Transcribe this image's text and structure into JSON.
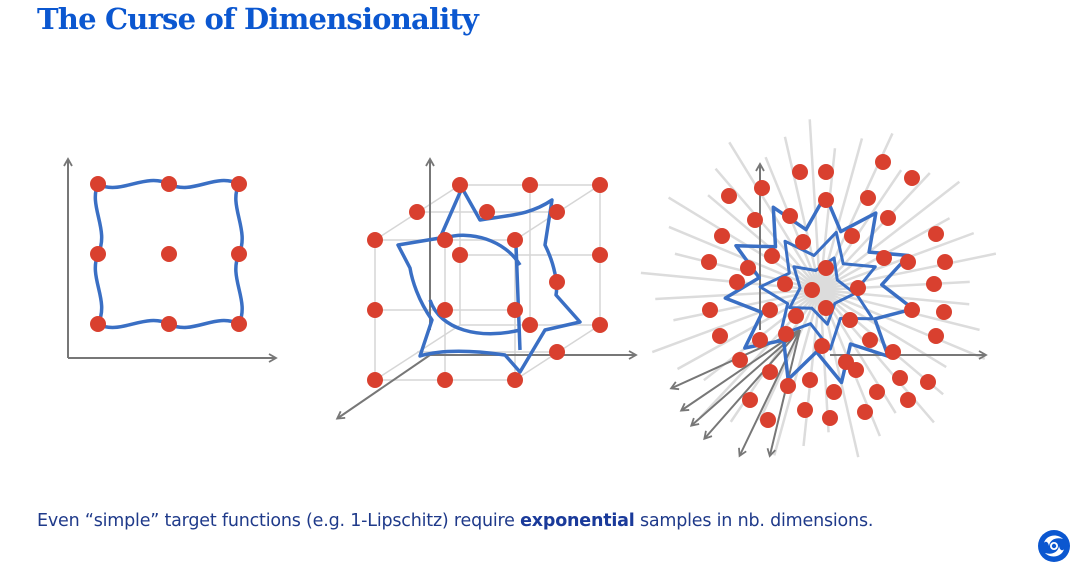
{
  "title": "The Curse of Dimensionality",
  "caption": {
    "before": "Even “simple” target functions (e.g. 1-Lipschitz) require ",
    "bold": "exponential",
    "after": " samples in nb. dimensions."
  },
  "logo": {
    "name": "deepmind-logo"
  },
  "colors": {
    "title": "#0b57d0",
    "sample_dot": "#d9402f",
    "function_curve": "#3a6fc4",
    "axis": "#777777"
  },
  "panels": [
    "1D-2D grid",
    "3D cube grid",
    "high-dimensional"
  ]
}
